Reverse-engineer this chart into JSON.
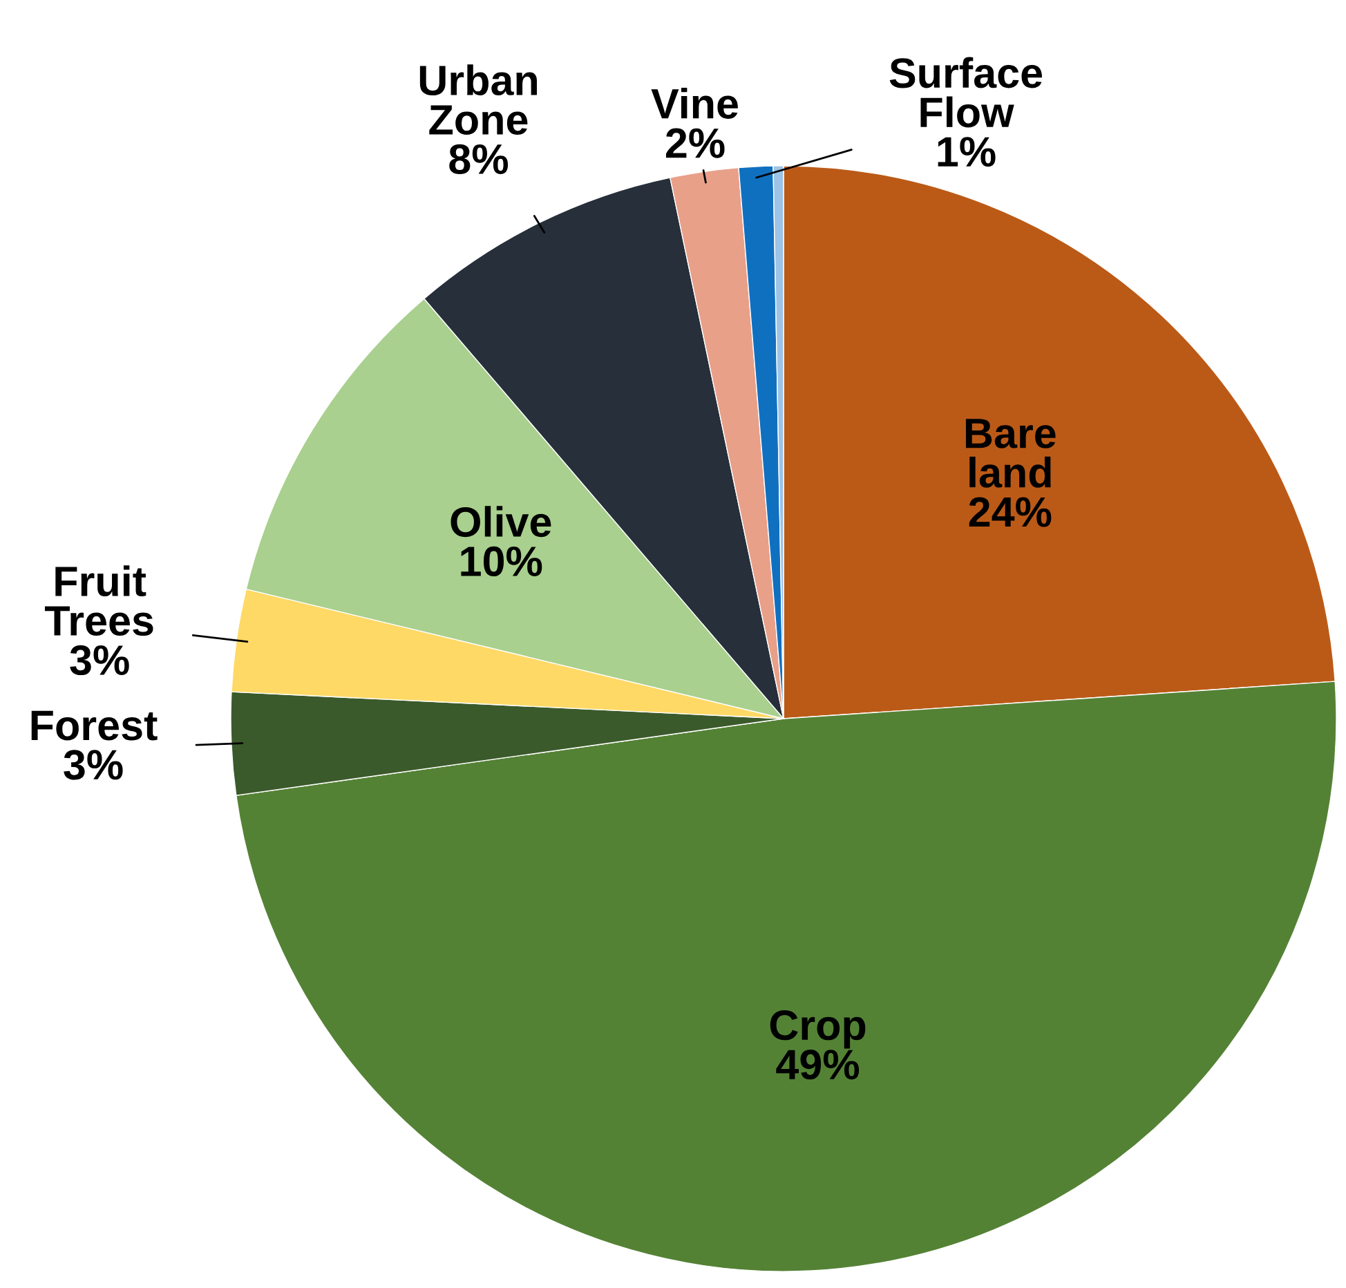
{
  "chart_data": {
    "type": "pie",
    "categories": [
      "Bare land",
      "Crop",
      "Forest",
      "Fruit Trees",
      "Olive",
      "Urban Zone",
      "Vine",
      "Surface Flow",
      null
    ],
    "values": [
      24,
      49,
      3,
      3,
      10,
      8,
      2,
      1,
      0.3
    ],
    "value_labels": [
      "24%",
      "49%",
      "3%",
      "3%",
      "10%",
      "8%",
      "2%",
      "1%",
      null
    ],
    "colors": [
      "#bb5a17",
      "#548235",
      "#3b5a2b",
      "#ffd966",
      "#a9d08e",
      "#262f3a",
      "#e8a089",
      "#1070c0",
      "#9dc3e6"
    ],
    "legend": false
  }
}
